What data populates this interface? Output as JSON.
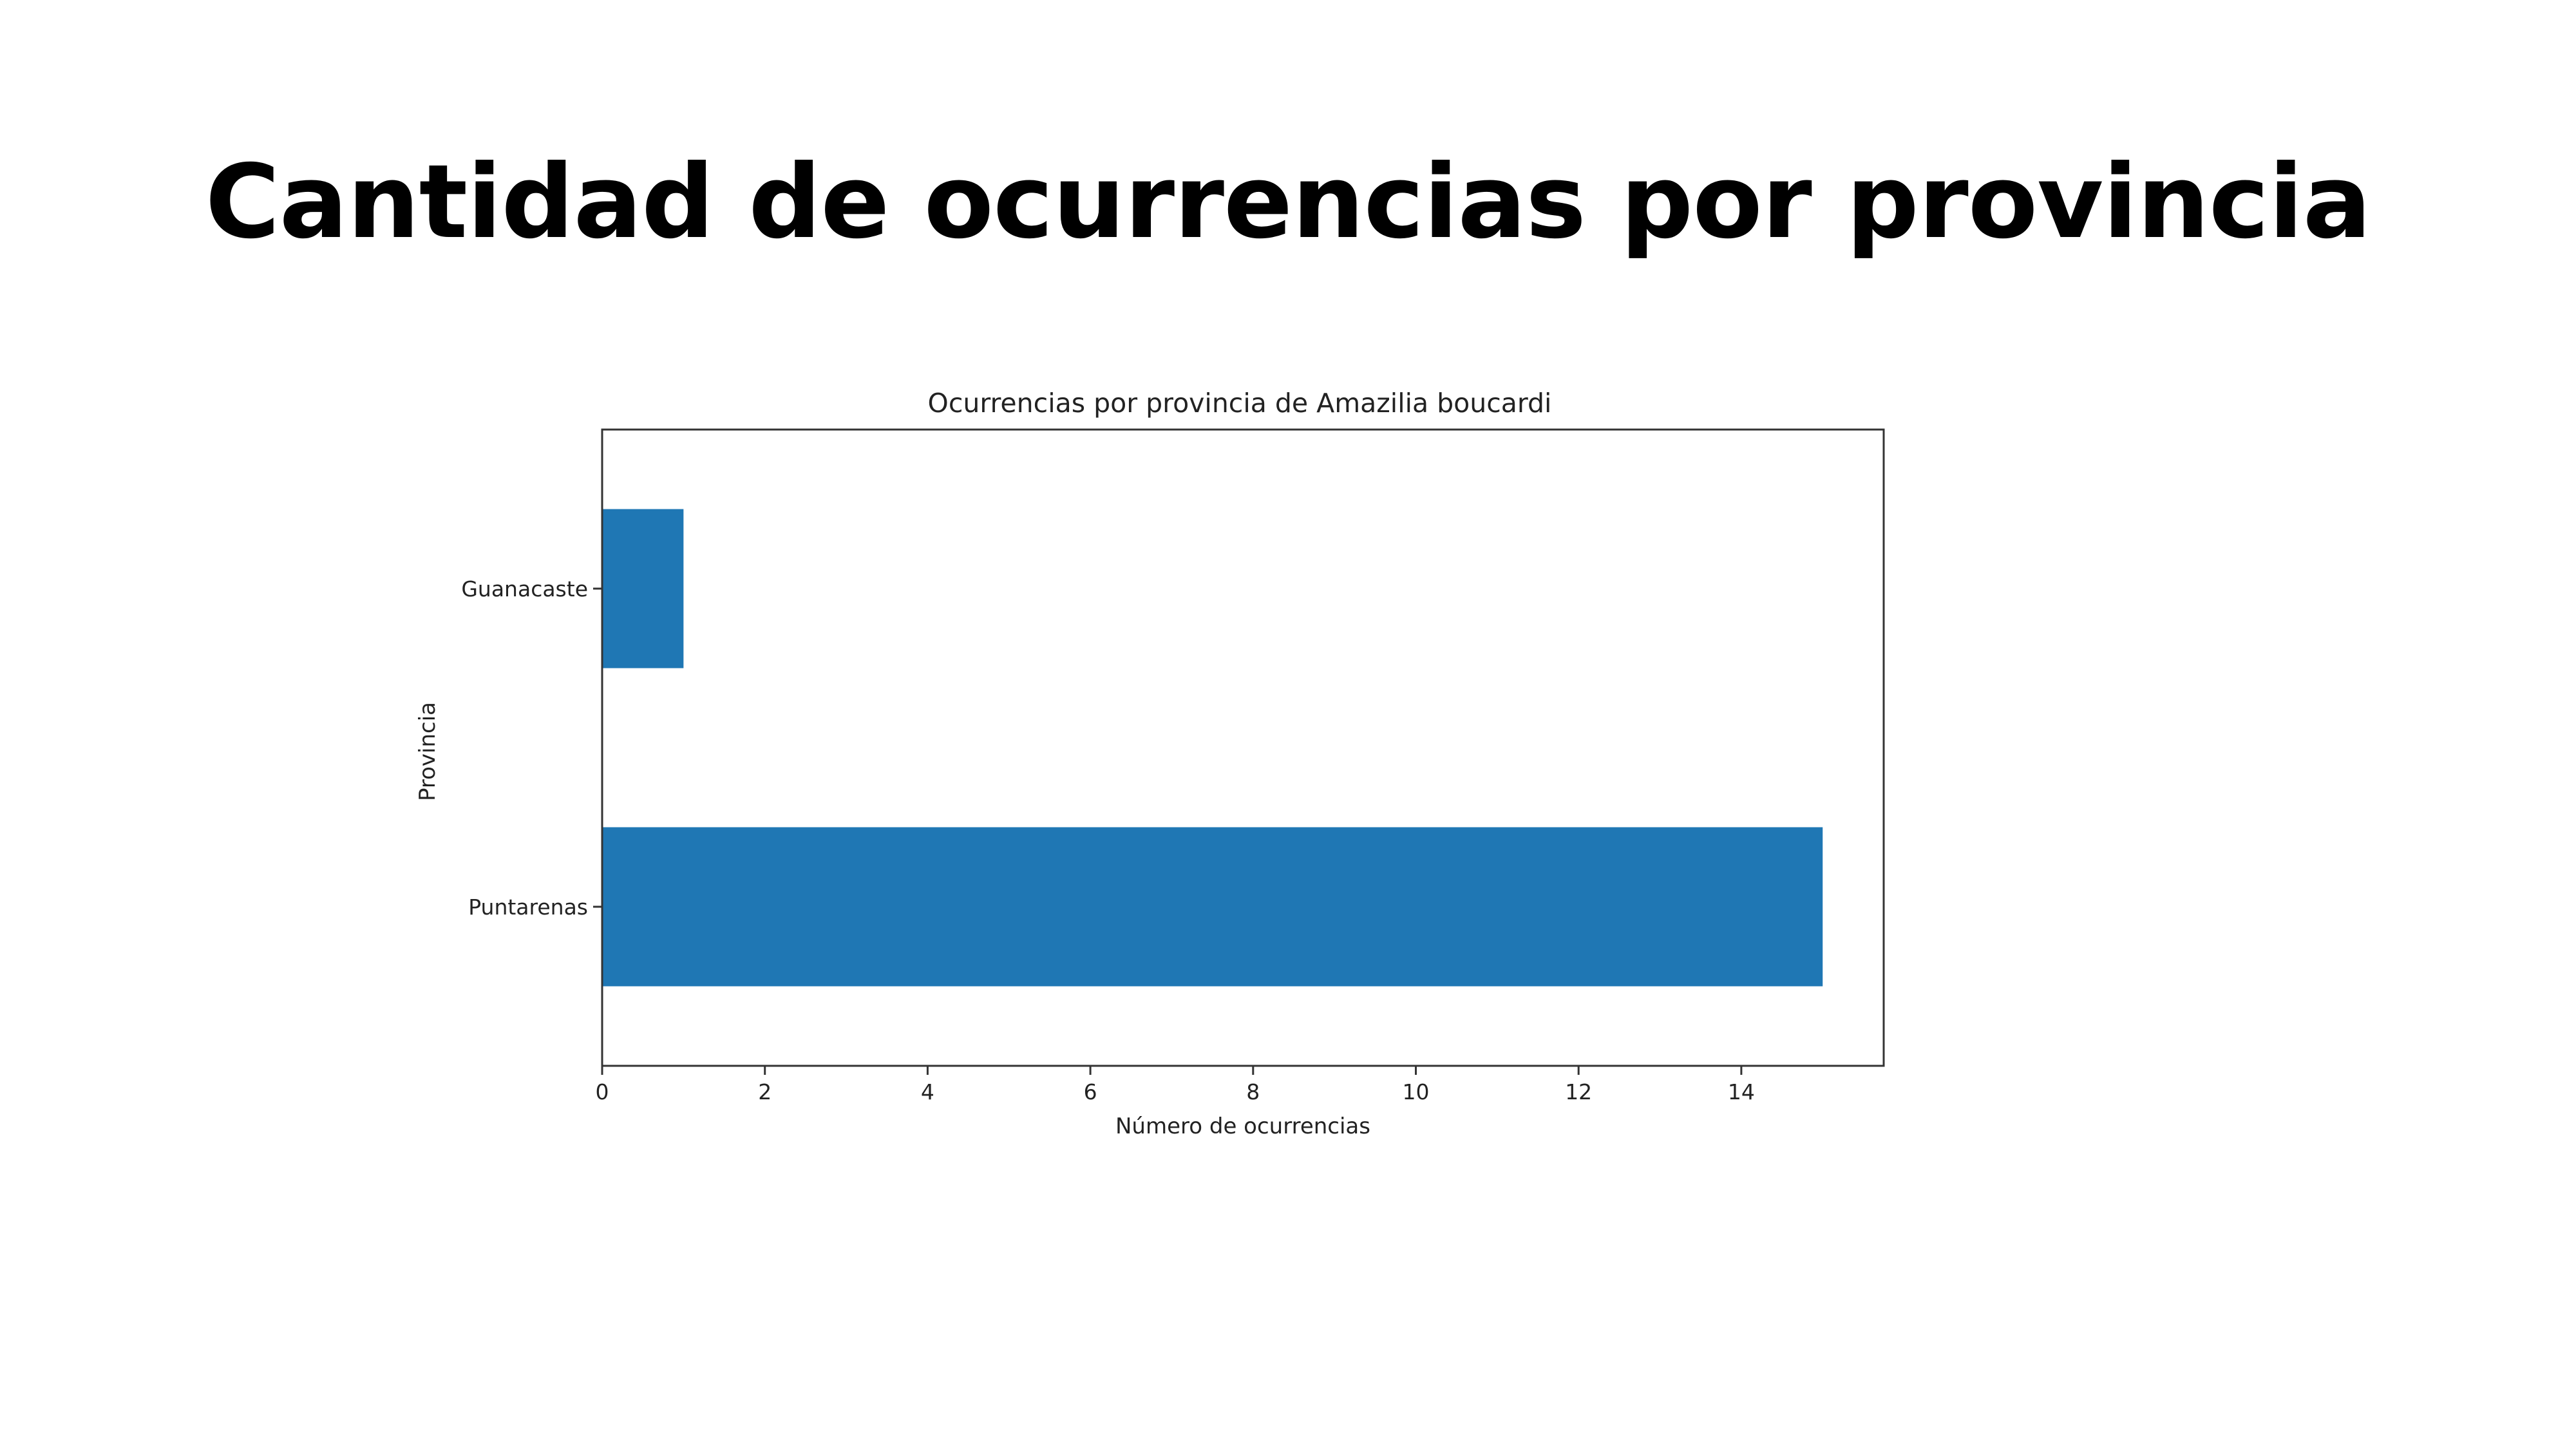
{
  "slide": {
    "title": "Cantidad de ocurrencias por provincia"
  },
  "chart_data": {
    "type": "bar",
    "orientation": "horizontal",
    "title": "Ocurrencias por provincia de Amazilia boucardi",
    "xlabel": "Número de ocurrencias",
    "ylabel": "Provincia",
    "categories": [
      "Guanacaste",
      "Puntarenas"
    ],
    "values": [
      1,
      15
    ],
    "xlim": [
      0,
      15.75
    ],
    "xticks": [
      0,
      2,
      4,
      6,
      8,
      10,
      12,
      14
    ],
    "grid": false,
    "legend": false,
    "bar_color": "#1f77b4"
  }
}
